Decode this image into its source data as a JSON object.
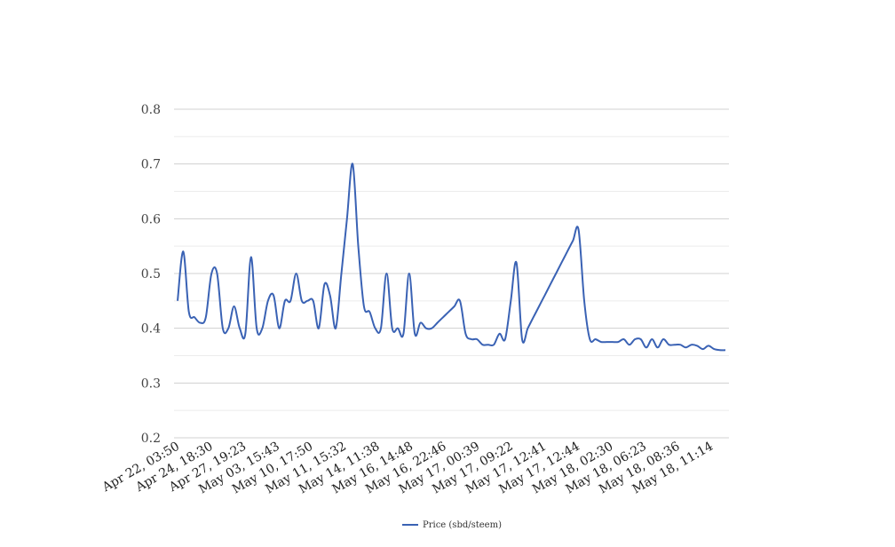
{
  "chart_data": {
    "type": "line",
    "title": "",
    "xlabel": "",
    "ylabel": "",
    "ylim": [
      0.2,
      0.8
    ],
    "yticks": [
      "0.2",
      "0.3",
      "0.4",
      "0.5",
      "0.6",
      "0.7",
      "0.8"
    ],
    "grid": true,
    "legend_position": "bottom-center",
    "x_tick_labels": [
      "Apr 22, 03:50",
      "Apr 24, 18:30",
      "Apr 27, 19:23",
      "May 03, 15:43",
      "May 10, 17:50",
      "May 11, 15:32",
      "May 14, 11:38",
      "May 16, 14:48",
      "May 16, 22:46",
      "May 17, 00:39",
      "May 17, 09:22",
      "May 17, 12:41",
      "May 17, 12:44",
      "May 18, 02:30",
      "May 18, 06:23",
      "May 18, 08:36",
      "May 18, 11:14"
    ],
    "series": [
      {
        "name": "Price (sbd/steem)",
        "color": "#3a62b4",
        "values": [
          0.45,
          0.54,
          0.43,
          0.42,
          0.41,
          0.42,
          0.5,
          0.5,
          0.4,
          0.4,
          0.44,
          0.4,
          0.39,
          0.53,
          0.4,
          0.4,
          0.45,
          0.46,
          0.4,
          0.45,
          0.45,
          0.5,
          0.45,
          0.45,
          0.45,
          0.4,
          0.48,
          0.46,
          0.4,
          0.5,
          0.6,
          0.7,
          0.55,
          0.44,
          0.43,
          0.4,
          0.4,
          0.5,
          0.4,
          0.4,
          0.39,
          0.5,
          0.39,
          0.41,
          0.4,
          0.4,
          0.41,
          0.42,
          0.43,
          0.44,
          0.45,
          0.39,
          0.38,
          0.38,
          0.37,
          0.37,
          0.37,
          0.39,
          0.38,
          0.45,
          0.52,
          0.38,
          0.4,
          0.42,
          0.44,
          0.46,
          0.48,
          0.5,
          0.52,
          0.54,
          0.56,
          0.58,
          0.45,
          0.38,
          0.38,
          0.375,
          0.375,
          0.375,
          0.375,
          0.38,
          0.37,
          0.38,
          0.38,
          0.365,
          0.38,
          0.365,
          0.38,
          0.37,
          0.37,
          0.37,
          0.365,
          0.37,
          0.368,
          0.362,
          0.368,
          0.362,
          0.36,
          0.36
        ]
      }
    ]
  }
}
